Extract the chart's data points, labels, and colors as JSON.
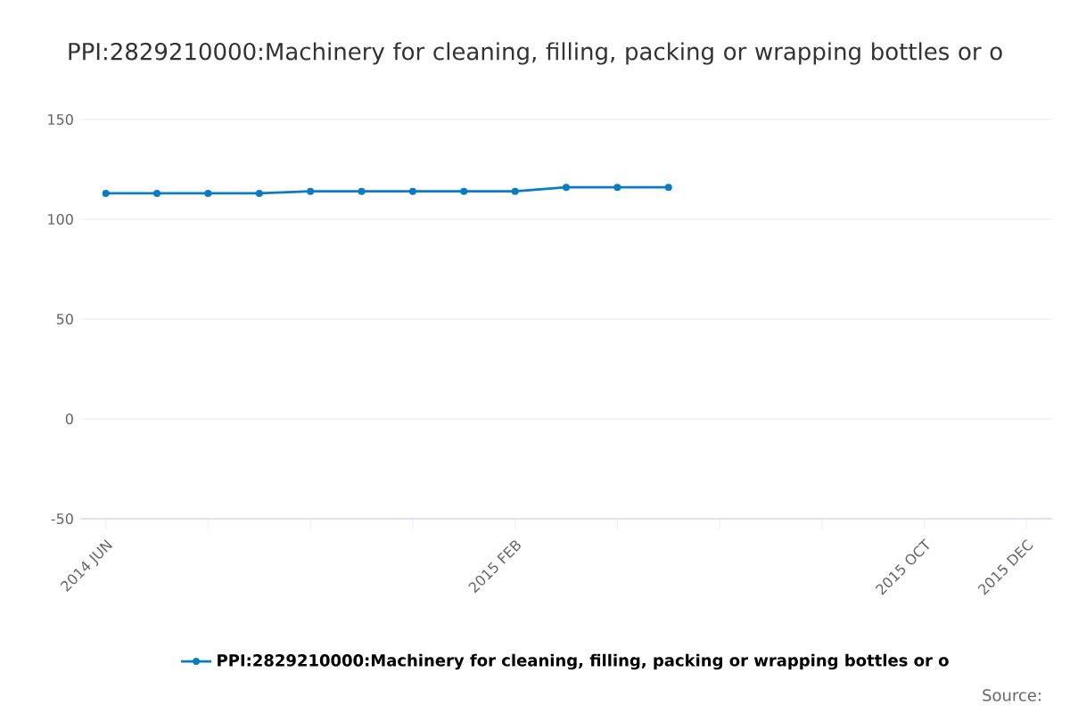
{
  "chart_data": {
    "type": "line",
    "title": "PPI:2829210000:Machinery for cleaning, filling, packing or wrapping bottles or o",
    "categories": [
      "2014 JUN",
      null,
      null,
      null,
      null,
      null,
      null,
      null,
      "2015 FEB",
      null,
      null,
      null,
      null,
      null,
      null,
      null,
      "2015 OCT",
      null,
      "2015 DEC"
    ],
    "series": [
      {
        "name": "PPI:2829210000:Machinery for cleaning, filling, packing or wrapping bottles or o",
        "color": "#0a7dc2",
        "values": [
          113,
          113,
          113,
          113,
          114,
          114,
          114,
          114,
          114,
          116,
          116,
          116,
          null,
          null,
          null,
          null,
          null,
          null,
          null
        ]
      }
    ],
    "ylim": [
      -50,
      150
    ],
    "yticks": [
      -50,
      0,
      50,
      100,
      150
    ],
    "grid": "y",
    "legend": "bottom",
    "marker": "circle",
    "line_style": "solid",
    "annotations": [
      "Source:"
    ]
  }
}
